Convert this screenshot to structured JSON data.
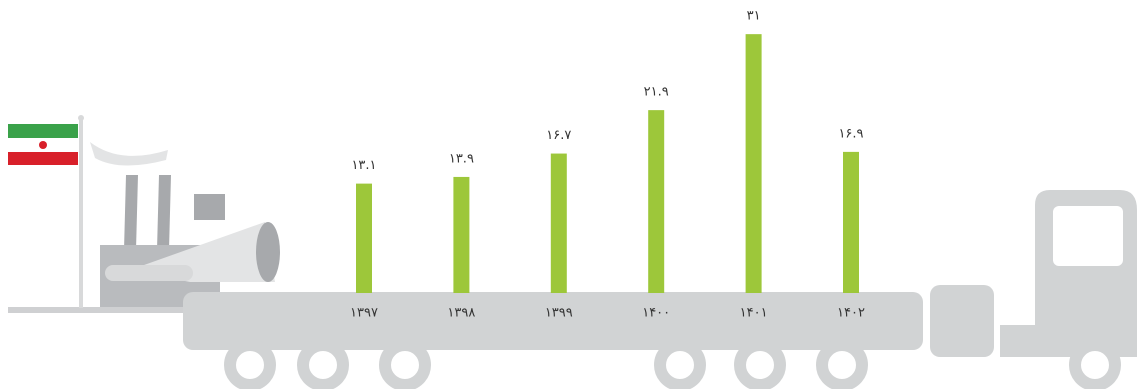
{
  "chart_data": {
    "type": "bar",
    "categories": [
      "۱۳۹۷",
      "۱۳۹۸",
      "۱۳۹۹",
      "۱۴۰۰",
      "۱۴۰۱",
      "۱۴۰۲"
    ],
    "values": [
      13.1,
      13.9,
      16.7,
      21.9,
      31,
      16.9
    ],
    "value_labels": [
      "۱۳.۱",
      "۱۳.۹",
      "۱۶.۷",
      "۲۱.۹",
      "۳۱",
      "۱۶.۹"
    ],
    "color": "#9dc73a"
  }
}
